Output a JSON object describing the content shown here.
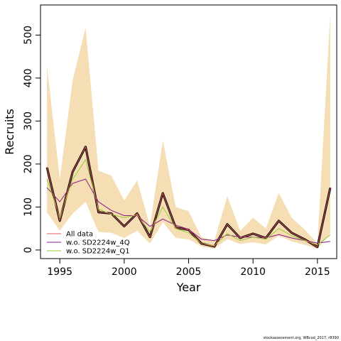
{
  "chart_data": {
    "type": "line",
    "xlabel": "Year",
    "ylabel": "Recruits",
    "xlim": [
      1993.5,
      2016.5
    ],
    "ylim": [
      -20,
      570
    ],
    "x_ticks": [
      1995,
      2000,
      2005,
      2010,
      2015
    ],
    "y_ticks": [
      0,
      100,
      200,
      300,
      400,
      500
    ],
    "grid": false,
    "legend_position": "bottom-left",
    "x": [
      1994,
      1995,
      1996,
      1997,
      1998,
      1999,
      2000,
      2001,
      2002,
      2003,
      2004,
      2005,
      2006,
      2007,
      2008,
      2009,
      2010,
      2011,
      2012,
      2013,
      2014,
      2015,
      2016
    ],
    "confidence_band": {
      "color": "#f5deb3",
      "lower": [
        88,
        45,
        85,
        112,
        42,
        40,
        28,
        45,
        15,
        65,
        28,
        25,
        8,
        3,
        25,
        14,
        18,
        13,
        33,
        20,
        12,
        3,
        38
      ],
      "upper": [
        428,
        165,
        395,
        517,
        185,
        173,
        115,
        162,
        55,
        255,
        100,
        90,
        30,
        22,
        125,
        45,
        75,
        50,
        133,
        75,
        48,
        15,
        548
      ]
    },
    "series": [
      {
        "name": "All data",
        "color": "#e05a5a",
        "values": [
          192,
          68,
          182,
          240,
          88,
          85,
          55,
          85,
          30,
          132,
          52,
          47,
          15,
          8,
          60,
          28,
          38,
          28,
          68,
          40,
          25,
          7,
          145
        ]
      },
      {
        "name": "w.o. SD2224w_4Q",
        "color": "#8b1a8b",
        "values": [
          145,
          112,
          155,
          165,
          112,
          92,
          80,
          80,
          55,
          72,
          58,
          48,
          25,
          22,
          35,
          30,
          30,
          28,
          36,
          28,
          22,
          16,
          20
        ]
      },
      {
        "name": "w.o. SD2224w_Q1",
        "color": "#9acd32",
        "values": [
          165,
          75,
          165,
          210,
          95,
          83,
          75,
          82,
          42,
          100,
          50,
          40,
          15,
          10,
          38,
          22,
          30,
          25,
          50,
          33,
          22,
          12,
          35
        ]
      }
    ],
    "emphasis_line": {
      "color": "#000000",
      "values": [
        192,
        68,
        182,
        240,
        88,
        85,
        55,
        85,
        30,
        132,
        52,
        47,
        15,
        8,
        60,
        28,
        38,
        28,
        68,
        40,
        25,
        7,
        145
      ]
    }
  },
  "footer": "stockassessment.org, WBcod_2017, r8390"
}
